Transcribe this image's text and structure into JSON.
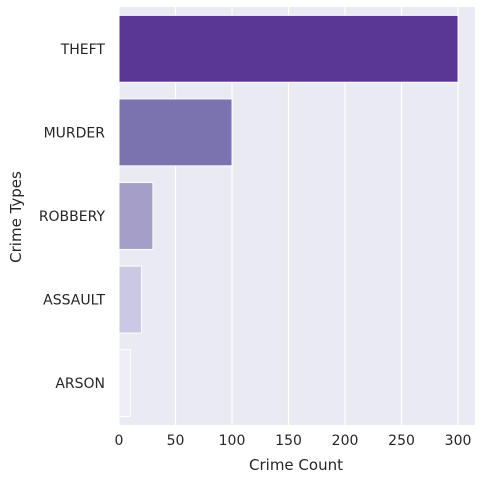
{
  "chart_data": {
    "type": "bar",
    "orientation": "horizontal",
    "categories": [
      "THEFT",
      "MURDER",
      "ROBBERY",
      "ASSAULT",
      "ARSON"
    ],
    "values": [
      300,
      100,
      30,
      20,
      10
    ],
    "xlabel": "Crime Count",
    "ylabel": "Crime Types",
    "xlim": [
      0,
      315
    ],
    "xticks": [
      0,
      50,
      100,
      150,
      200,
      250,
      300
    ],
    "grid": true,
    "colors": [
      "#5b3794",
      "#7b72b0",
      "#a49ec8",
      "#cac8e3",
      "#efedf5"
    ],
    "plot_background": "#eaeaf2"
  }
}
